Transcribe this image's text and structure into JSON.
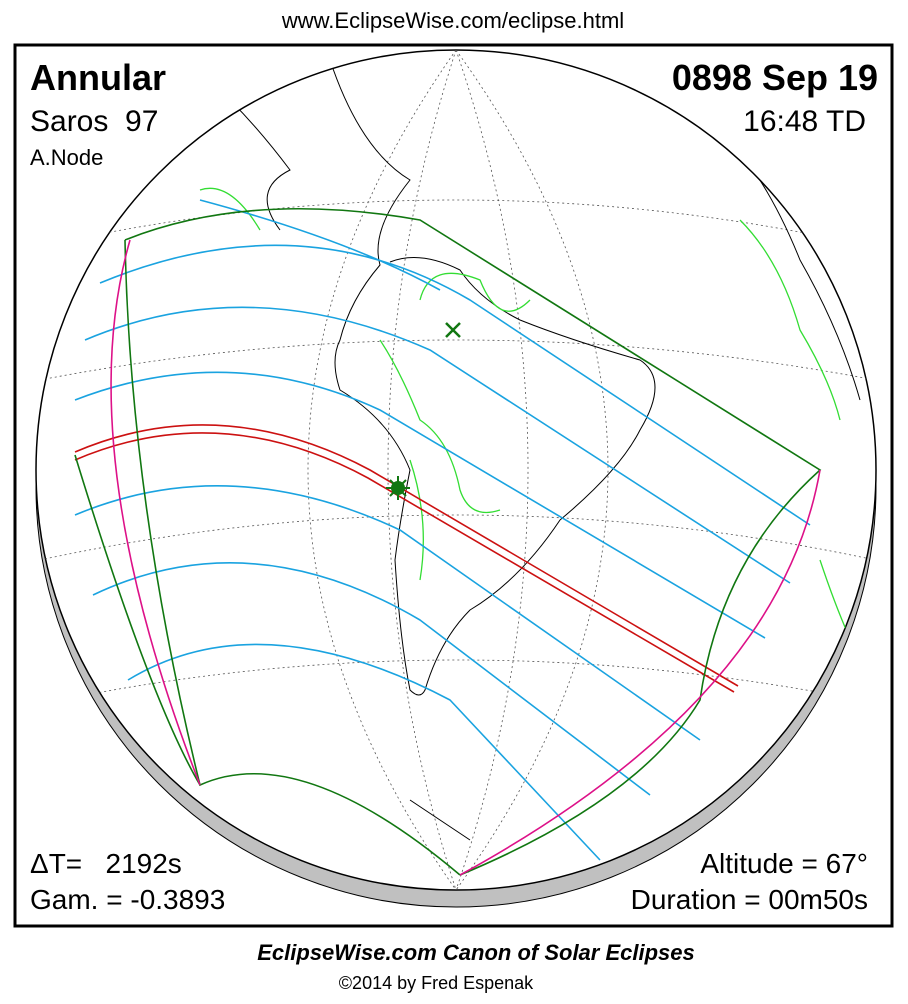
{
  "header": {
    "url": "www.EclipseWise.com/eclipse.html"
  },
  "panel": {
    "eclipse_type": "Annular",
    "saros": "Saros  97",
    "node": "A.Node",
    "date": "0898 Sep 19",
    "time": "16:48 TD",
    "delta_t": "ΔT=   2192s",
    "gamma": "Gam. = -0.3893",
    "altitude": "Altitude = 67°",
    "duration": "Duration = 00m50s"
  },
  "footer": {
    "title": "EclipseWise.com Canon of Solar Eclipses",
    "copyright": "©2014 by Fred Espenak"
  }
}
